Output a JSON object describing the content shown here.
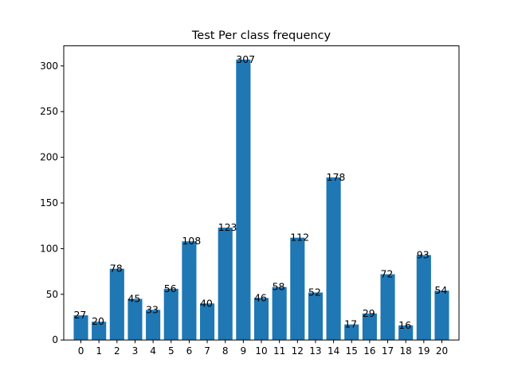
{
  "chart_data": {
    "type": "bar",
    "title": "Test Per class frequency",
    "xlabel": "",
    "ylabel": "",
    "categories": [
      "0",
      "1",
      "2",
      "3",
      "4",
      "5",
      "6",
      "7",
      "8",
      "9",
      "10",
      "11",
      "12",
      "13",
      "14",
      "15",
      "16",
      "17",
      "18",
      "19",
      "20"
    ],
    "values": [
      27,
      20,
      78,
      45,
      33,
      56,
      108,
      40,
      123,
      307,
      46,
      58,
      112,
      52,
      178,
      17,
      29,
      72,
      16,
      93,
      54
    ],
    "ylim": [
      0,
      322
    ],
    "yticks": [
      0,
      50,
      100,
      150,
      200,
      250,
      300
    ],
    "bar_color": "#1f77b4",
    "grid": false,
    "data_labels": true
  }
}
